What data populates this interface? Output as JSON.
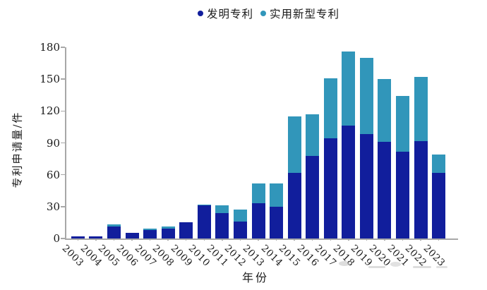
{
  "legend": {
    "items": [
      {
        "label": "发明专利",
        "color": "#111E9C"
      },
      {
        "label": "实用新型专利",
        "color": "#3196BA"
      }
    ]
  },
  "axes": {
    "ylabel": "专利申请量/件",
    "xlabel": "年份"
  },
  "chart_data": {
    "type": "bar",
    "stacked": true,
    "title": "",
    "xlabel": "年份",
    "ylabel": "专利申请量/件",
    "ylim": [
      0,
      180
    ],
    "yticks": [
      0,
      30,
      60,
      90,
      120,
      150,
      180
    ],
    "grid": false,
    "legend_position": "top-center",
    "categories": [
      "2003",
      "2004",
      "2005",
      "2006",
      "2007",
      "2008",
      "2009",
      "2010",
      "2011",
      "2012",
      "2013",
      "2014",
      "2015",
      "2016",
      "2017",
      "2018",
      "2019",
      "2020",
      "2021",
      "2022",
      "2023"
    ],
    "series": [
      {
        "name": "发明专利",
        "color": "#111E9C",
        "values": [
          2,
          2,
          11,
          5,
          8,
          9,
          15,
          31,
          24,
          16,
          33,
          30,
          62,
          78,
          94,
          106,
          98,
          91,
          82,
          92,
          62
        ]
      },
      {
        "name": "实用新型专利",
        "color": "#3196BA",
        "values": [
          0,
          0,
          2,
          0,
          1,
          2,
          0,
          1,
          7,
          11,
          19,
          22,
          53,
          39,
          57,
          70,
          72,
          59,
          52,
          60,
          17
        ]
      }
    ],
    "totals": [
      2,
      2,
      13,
      5,
      9,
      11,
      15,
      32,
      31,
      27,
      52,
      52,
      115,
      117,
      151,
      176,
      170,
      150,
      134,
      152,
      79
    ]
  }
}
